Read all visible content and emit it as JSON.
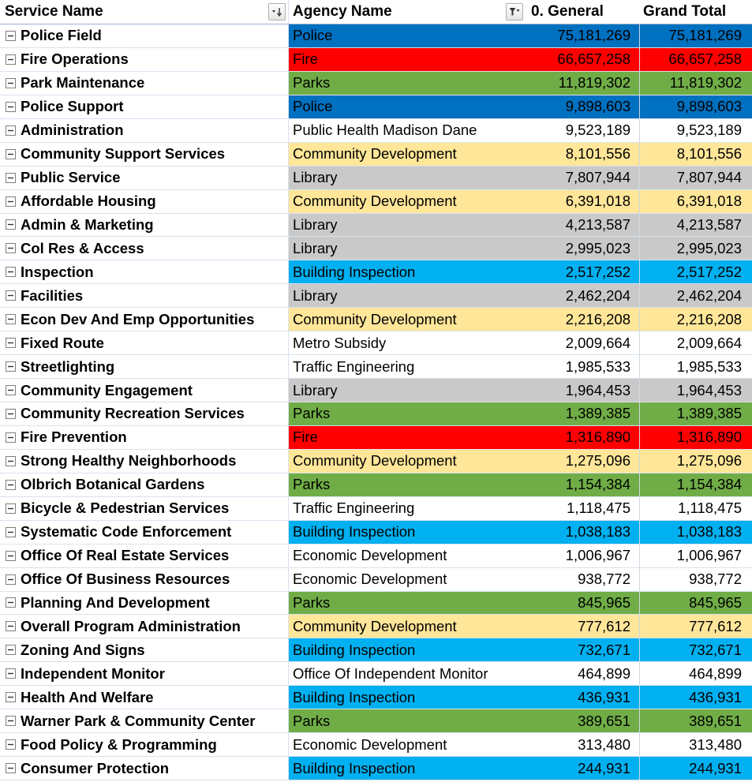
{
  "headers": {
    "service_name": "Service Name",
    "agency_name": "Agency Name",
    "general": "0. General",
    "grand_total": "Grand Total"
  },
  "colors": {
    "Police": {
      "bg": "#0070c0",
      "fg": "#000000"
    },
    "Fire": {
      "bg": "#ff0000",
      "fg": "#000000"
    },
    "Parks": {
      "bg": "#70ad47",
      "fg": "#000000"
    },
    "Community Development": {
      "bg": "#ffe699",
      "fg": "#000000"
    },
    "Library": {
      "bg": "#c9c9c9",
      "fg": "#000000"
    },
    "Building Inspection": {
      "bg": "#00b0f0",
      "fg": "#000000"
    },
    "default": {
      "bg": "#ffffff",
      "fg": "#000000"
    }
  },
  "rows": [
    {
      "service": "Police Field",
      "agency": "Police",
      "general": "75,181,269",
      "total": "75,181,269"
    },
    {
      "service": "Fire Operations",
      "agency": "Fire",
      "general": "66,657,258",
      "total": "66,657,258"
    },
    {
      "service": "Park Maintenance",
      "agency": "Parks",
      "general": "11,819,302",
      "total": "11,819,302"
    },
    {
      "service": "Police Support",
      "agency": "Police",
      "general": "9,898,603",
      "total": "9,898,603"
    },
    {
      "service": "Administration",
      "agency": "Public Health Madison Dane",
      "general": "9,523,189",
      "total": "9,523,189"
    },
    {
      "service": "Community Support Services",
      "agency": "Community Development",
      "general": "8,101,556",
      "total": "8,101,556"
    },
    {
      "service": "Public Service",
      "agency": "Library",
      "general": "7,807,944",
      "total": "7,807,944"
    },
    {
      "service": "Affordable Housing",
      "agency": "Community Development",
      "general": "6,391,018",
      "total": "6,391,018"
    },
    {
      "service": "Admin & Marketing",
      "agency": "Library",
      "general": "4,213,587",
      "total": "4,213,587"
    },
    {
      "service": "Col Res & Access",
      "agency": "Library",
      "general": "2,995,023",
      "total": "2,995,023"
    },
    {
      "service": "Inspection",
      "agency": "Building Inspection",
      "general": "2,517,252",
      "total": "2,517,252"
    },
    {
      "service": "Facilities",
      "agency": "Library",
      "general": "2,462,204",
      "total": "2,462,204"
    },
    {
      "service": "Econ Dev And Emp Opportunities",
      "agency": "Community Development",
      "general": "2,216,208",
      "total": "2,216,208"
    },
    {
      "service": "Fixed Route",
      "agency": "Metro Subsidy",
      "general": "2,009,664",
      "total": "2,009,664"
    },
    {
      "service": "Streetlighting",
      "agency": "Traffic Engineering",
      "general": "1,985,533",
      "total": "1,985,533"
    },
    {
      "service": "Community Engagement",
      "agency": "Library",
      "general": "1,964,453",
      "total": "1,964,453"
    },
    {
      "service": "Community Recreation Services",
      "agency": "Parks",
      "general": "1,389,385",
      "total": "1,389,385"
    },
    {
      "service": "Fire Prevention",
      "agency": "Fire",
      "general": "1,316,890",
      "total": "1,316,890"
    },
    {
      "service": "Strong Healthy Neighborhoods",
      "agency": "Community Development",
      "general": "1,275,096",
      "total": "1,275,096"
    },
    {
      "service": "Olbrich Botanical Gardens",
      "agency": "Parks",
      "general": "1,154,384",
      "total": "1,154,384"
    },
    {
      "service": "Bicycle & Pedestrian Services",
      "agency": "Traffic Engineering",
      "general": "1,118,475",
      "total": "1,118,475"
    },
    {
      "service": "Systematic Code Enforcement",
      "agency": "Building Inspection",
      "general": "1,038,183",
      "total": "1,038,183"
    },
    {
      "service": "Office Of Real Estate Services",
      "agency": "Economic Development",
      "general": "1,006,967",
      "total": "1,006,967"
    },
    {
      "service": "Office Of Business Resources",
      "agency": "Economic Development",
      "general": "938,772",
      "total": "938,772"
    },
    {
      "service": "Planning And Development",
      "agency": "Parks",
      "general": "845,965",
      "total": "845,965"
    },
    {
      "service": "Overall Program Administration",
      "agency": "Community Development",
      "general": "777,612",
      "total": "777,612"
    },
    {
      "service": "Zoning And Signs",
      "agency": "Building Inspection",
      "general": "732,671",
      "total": "732,671"
    },
    {
      "service": "Independent Monitor",
      "agency": "Office Of Independent Monitor",
      "general": "464,899",
      "total": "464,899"
    },
    {
      "service": "Health And Welfare",
      "agency": "Building Inspection",
      "general": "436,931",
      "total": "436,931"
    },
    {
      "service": "Warner Park & Community Center",
      "agency": "Parks",
      "general": "389,651",
      "total": "389,651"
    },
    {
      "service": "Food Policy & Programming",
      "agency": "Economic Development",
      "general": "313,480",
      "total": "313,480"
    },
    {
      "service": "Consumer Protection",
      "agency": "Building Inspection",
      "general": "244,931",
      "total": "244,931"
    }
  ]
}
